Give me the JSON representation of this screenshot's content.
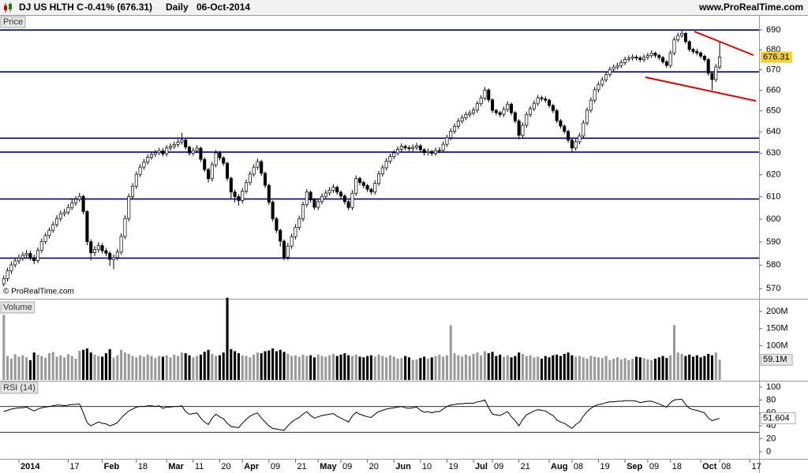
{
  "header": {
    "instrument": "DJ US HLTH C",
    "change": "-0.41% (676.31)",
    "period": "Daily",
    "date": "06-Oct-2014",
    "site": "www.ProRealTime.com",
    "watermark": "© ProRealTime.com"
  },
  "chart_data": [
    {
      "type": "candlestick",
      "panel_label": "Price",
      "log_scale": true,
      "ylim": [
        566.4,
        697.3
      ],
      "yticks": [
        570,
        580,
        590,
        600,
        610,
        620,
        630,
        640,
        650,
        660,
        670,
        680,
        690
      ],
      "xlim": [
        -1,
        199.4
      ],
      "xticks": [
        {
          "value": 4,
          "label": "2014"
        },
        {
          "value": 17,
          "label": "17"
        },
        {
          "value": 26,
          "label": "Feb"
        },
        {
          "value": 35,
          "label": "18"
        },
        {
          "value": 43,
          "label": "Mar"
        },
        {
          "value": 50,
          "label": "11"
        },
        {
          "value": 57,
          "label": "20"
        },
        {
          "value": 63,
          "label": "Apr"
        },
        {
          "value": 70,
          "label": "09"
        },
        {
          "value": 77,
          "label": "21"
        },
        {
          "value": 83,
          "label": "May"
        },
        {
          "value": 89,
          "label": "09"
        },
        {
          "value": 96,
          "label": "20"
        },
        {
          "value": 103,
          "label": "Jun"
        },
        {
          "value": 110,
          "label": "10"
        },
        {
          "value": 117,
          "label": "19"
        },
        {
          "value": 124,
          "label": "Jul"
        },
        {
          "value": 129,
          "label": "09"
        },
        {
          "value": 136,
          "label": "21"
        },
        {
          "value": 144,
          "label": "Aug"
        },
        {
          "value": 150,
          "label": "08"
        },
        {
          "value": 157,
          "label": "19"
        },
        {
          "value": 164,
          "label": "Sep"
        },
        {
          "value": 170,
          "label": "09"
        },
        {
          "value": 176,
          "label": "18"
        },
        {
          "value": 184,
          "label": "Oct"
        },
        {
          "value": 189,
          "label": "08"
        },
        {
          "value": 197,
          "label": "17"
        }
      ],
      "levels": [
        690,
        669,
        637,
        630.5,
        609,
        583
      ],
      "level_color": "#000080",
      "up_color": "#ffffff",
      "down_color": "#000000",
      "last_color": "#f5d033",
      "open": [
        572.0,
        574.2,
        577.5,
        580.1,
        581.8,
        583.0,
        584.3,
        585.0,
        583.2,
        581.9,
        586.4,
        590.2,
        592.8,
        595.1,
        597.6,
        600.3,
        602.4,
        603.1,
        605.2,
        607.3,
        608.9,
        610.2,
        603.4,
        590.1,
        585.3,
        586.7,
        588.4,
        586.2,
        585.1,
        582.4,
        583.2,
        585.6,
        592.4,
        600.3,
        610.1,
        614.8,
        620.2,
        623.5,
        625.9,
        628.1,
        629.4,
        630.2,
        631.1,
        629.7,
        632.4,
        633.1,
        634.0,
        635.2,
        636.1,
        632.8,
        630.0,
        631.2,
        632.3,
        627.1,
        622.4,
        618.2,
        624.6,
        630.1,
        627.8,
        625.3,
        618.4,
        612.2,
        610.1,
        608.3,
        612.6,
        616.4,
        620.3,
        623.5,
        626.1,
        620.7,
        615.2,
        607.6,
        600.2,
        595.1,
        590.3,
        583.4,
        588.2,
        592.3,
        596.4,
        600.2,
        606.5,
        612.1,
        608.6,
        605.3,
        607.8,
        610.2,
        611.7,
        613.0,
        614.3,
        612.1,
        610.4,
        607.8,
        605.2,
        611.6,
        618.3,
        616.5,
        615.1,
        613.4,
        612.2,
        616.1,
        620.4,
        623.2,
        626.3,
        628.4,
        630.1,
        631.8,
        633.2,
        632.5,
        632.1,
        632.7,
        633.4,
        631.6,
        630.2,
        630.8,
        629.9,
        631.2,
        631.4,
        634.1,
        637.2,
        640.3,
        642.6,
        645.1,
        646.7,
        648.2,
        649.0,
        650.3,
        653.4,
        656.2,
        660.1,
        655.3,
        650.2,
        649.1,
        648.3,
        650.7,
        653.2,
        649.1,
        645.2,
        638.4,
        643.1,
        648.2,
        651.0,
        653.6,
        656.3,
        655.8,
        655.1,
        652.6,
        650.1,
        645.3,
        642.7,
        640.2,
        636.1,
        632.4,
        635.3,
        638.1,
        644.2,
        650.3,
        655.1,
        660.2,
        662.8,
        665.1,
        667.6,
        670.2,
        671.3,
        672.1,
        673.6,
        675.2,
        675.8,
        676.4,
        675.9,
        675.1,
        676.2,
        677.1,
        678.3,
        677.2,
        676.1,
        674.0,
        672.2,
        678.4,
        685.1,
        687.2,
        688.3,
        684.1,
        680.2,
        679.1,
        678.4,
        676.8,
        675.1,
        668.3,
        665.2,
        671.4
      ],
      "high": [
        575.6,
        578.9,
        581.5,
        583.2,
        584.6,
        585.7,
        586.5,
        586.2,
        584.5,
        587.6,
        591.5,
        594.0,
        596.4,
        599.0,
        601.8,
        603.9,
        604.6,
        606.7,
        608.8,
        610.4,
        611.8,
        611.0,
        604.0,
        591.2,
        588.2,
        589.9,
        589.5,
        587.4,
        586.0,
        584.6,
        587.0,
        593.8,
        601.7,
        611.5,
        616.2,
        621.6,
        624.9,
        627.3,
        629.5,
        630.8,
        631.6,
        632.5,
        632.4,
        633.8,
        634.5,
        635.4,
        636.6,
        639.5,
        637.0,
        633.6,
        632.6,
        633.7,
        633.0,
        628.0,
        623.2,
        626.0,
        631.5,
        631.0,
        628.6,
        626.0,
        619.2,
        613.4,
        611.2,
        614.0,
        617.8,
        621.7,
        624.9,
        627.5,
        626.9,
        621.5,
        616.0,
        608.4,
        601.0,
        595.9,
        591.1,
        589.6,
        593.7,
        597.8,
        601.6,
        607.9,
        613.5,
        612.9,
        609.4,
        609.2,
        611.6,
        613.1,
        614.4,
        615.7,
        615.1,
        612.9,
        611.2,
        608.6,
        613.0,
        619.7,
        619.1,
        617.3,
        615.9,
        614.2,
        617.5,
        621.8,
        624.6,
        627.7,
        629.8,
        631.5,
        633.2,
        634.6,
        634.0,
        633.6,
        634.1,
        634.8,
        634.2,
        632.4,
        632.2,
        631.6,
        632.6,
        632.8,
        635.5,
        638.6,
        641.7,
        644.0,
        646.5,
        648.1,
        649.6,
        650.4,
        651.7,
        654.8,
        657.6,
        661.5,
        660.9,
        656.1,
        651.0,
        649.9,
        652.1,
        654.6,
        654.0,
        649.9,
        646.0,
        644.5,
        649.6,
        652.4,
        655.0,
        657.7,
        657.3,
        657.0,
        655.9,
        653.4,
        650.9,
        646.1,
        643.5,
        641.0,
        636.9,
        636.7,
        639.5,
        645.6,
        651.7,
        656.5,
        661.6,
        664.2,
        666.5,
        669.0,
        671.6,
        672.7,
        673.5,
        675.0,
        676.6,
        677.2,
        677.8,
        677.4,
        676.9,
        677.6,
        678.5,
        679.7,
        679.1,
        678.0,
        676.9,
        674.8,
        679.8,
        686.5,
        688.6,
        689.7,
        689.1,
        684.9,
        681.0,
        680.5,
        679.2,
        677.6,
        675.9,
        669.1,
        672.8,
        684.0
      ],
      "low": [
        570.9,
        573.0,
        576.2,
        579.0,
        580.5,
        581.9,
        583.0,
        582.0,
        580.4,
        580.8,
        585.2,
        589.1,
        591.5,
        594.0,
        596.5,
        599.0,
        601.2,
        602.0,
        604.1,
        606.0,
        607.7,
        602.1,
        588.6,
        582.0,
        583.9,
        585.4,
        585.0,
        583.8,
        579.6,
        578.2,
        582.0,
        584.4,
        591.2,
        599.0,
        608.9,
        613.6,
        619.0,
        622.3,
        624.7,
        626.9,
        628.2,
        629.0,
        628.5,
        628.5,
        631.2,
        631.9,
        632.8,
        634.0,
        631.6,
        628.8,
        628.8,
        630.0,
        625.9,
        621.2,
        616.5,
        617.0,
        623.4,
        626.6,
        624.1,
        617.2,
        609.0,
        607.5,
        606.0,
        607.1,
        611.4,
        615.2,
        619.1,
        622.3,
        619.5,
        614.0,
        606.4,
        599.0,
        593.9,
        588.0,
        582.0,
        582.2,
        587.0,
        591.1,
        595.2,
        599.0,
        605.3,
        607.4,
        604.1,
        604.1,
        606.6,
        609.0,
        610.5,
        611.8,
        610.9,
        609.2,
        606.6,
        604.0,
        604.0,
        610.4,
        615.3,
        613.9,
        612.2,
        611.0,
        611.0,
        614.9,
        619.2,
        622.0,
        625.1,
        627.2,
        628.9,
        630.6,
        631.3,
        630.9,
        630.9,
        631.5,
        630.4,
        629.0,
        629.0,
        628.7,
        628.7,
        630.0,
        630.2,
        632.9,
        636.0,
        639.1,
        641.4,
        643.9,
        645.5,
        647.0,
        647.8,
        649.1,
        652.2,
        655.0,
        654.1,
        649.0,
        647.9,
        647.1,
        647.1,
        649.5,
        647.9,
        644.0,
        636.5,
        637.2,
        641.9,
        647.0,
        649.8,
        652.4,
        654.6,
        653.9,
        651.4,
        648.9,
        644.1,
        641.5,
        639.0,
        634.9,
        630.5,
        631.2,
        634.1,
        636.9,
        643.0,
        649.1,
        653.9,
        659.0,
        661.6,
        663.9,
        666.4,
        669.0,
        670.1,
        670.9,
        672.4,
        674.0,
        674.6,
        674.7,
        673.9,
        673.9,
        675.0,
        675.9,
        676.0,
        674.9,
        672.8,
        671.0,
        671.0,
        677.2,
        683.9,
        686.0,
        682.9,
        679.0,
        677.9,
        677.2,
        675.6,
        673.9,
        667.1,
        660.0,
        664.0,
        670.2
      ],
      "close": [
        574.2,
        577.5,
        580.1,
        581.8,
        583.0,
        584.3,
        585.0,
        583.2,
        581.9,
        586.4,
        590.2,
        592.8,
        595.1,
        597.6,
        600.3,
        602.4,
        603.1,
        605.2,
        607.3,
        608.9,
        610.2,
        603.4,
        590.1,
        585.3,
        586.7,
        588.4,
        586.2,
        585.1,
        582.4,
        583.2,
        585.6,
        592.4,
        600.3,
        610.1,
        614.8,
        620.2,
        623.5,
        625.9,
        628.1,
        629.4,
        630.2,
        631.1,
        629.7,
        632.4,
        633.1,
        634.0,
        635.2,
        636.1,
        632.8,
        630.0,
        631.2,
        632.3,
        627.1,
        622.4,
        618.2,
        624.6,
        630.1,
        627.8,
        625.3,
        618.4,
        612.2,
        610.1,
        608.3,
        612.6,
        616.4,
        620.3,
        623.5,
        626.1,
        620.7,
        615.2,
        607.6,
        600.2,
        595.1,
        590.3,
        583.4,
        588.2,
        592.3,
        596.4,
        600.2,
        606.5,
        612.1,
        608.6,
        605.3,
        607.8,
        610.2,
        611.7,
        613.0,
        614.3,
        612.1,
        610.4,
        607.8,
        605.2,
        611.6,
        618.3,
        616.5,
        615.1,
        613.4,
        612.2,
        616.1,
        620.4,
        623.2,
        626.3,
        628.4,
        630.1,
        631.8,
        633.2,
        632.5,
        632.1,
        632.7,
        633.4,
        631.6,
        630.2,
        630.8,
        629.9,
        631.2,
        631.4,
        634.1,
        637.2,
        640.3,
        642.6,
        645.1,
        646.7,
        648.2,
        649.0,
        650.3,
        653.4,
        656.2,
        660.1,
        655.3,
        650.2,
        649.1,
        648.3,
        650.7,
        653.2,
        649.1,
        645.2,
        638.4,
        643.1,
        648.2,
        651.0,
        653.6,
        656.3,
        655.8,
        655.1,
        652.6,
        650.1,
        645.3,
        642.7,
        640.2,
        636.1,
        632.4,
        635.3,
        638.1,
        644.2,
        650.3,
        655.1,
        660.2,
        662.8,
        665.1,
        667.6,
        670.2,
        671.3,
        672.1,
        673.6,
        675.2,
        675.8,
        676.4,
        675.9,
        675.1,
        676.2,
        677.1,
        678.3,
        677.2,
        676.1,
        674.0,
        672.2,
        678.4,
        685.1,
        687.2,
        688.3,
        684.1,
        680.2,
        679.1,
        678.4,
        676.8,
        675.1,
        668.3,
        665.2,
        671.4,
        676.31
      ]
    },
    {
      "type": "bar",
      "panel_label": "Volume",
      "ylim": [
        0,
        230
      ],
      "yticks": [
        {
          "value": 200,
          "label": "200M"
        },
        {
          "value": 150,
          "label": "150M"
        },
        {
          "value": 100,
          "label": "100M"
        }
      ],
      "up_color": "#999999",
      "down_color": "#000000",
      "last_label": "59.1M",
      "values": [
        190,
        70,
        62,
        75,
        68,
        72,
        66,
        58,
        80,
        74,
        70,
        65,
        78,
        82,
        68,
        72,
        66,
        75,
        70,
        62,
        85,
        88,
        92,
        80,
        74,
        70,
        68,
        78,
        90,
        65,
        72,
        88,
        80,
        76,
        70,
        66,
        72,
        68,
        74,
        70,
        64,
        70,
        68,
        72,
        66,
        74,
        70,
        80,
        78,
        72,
        66,
        70,
        74,
        82,
        88,
        76,
        70,
        72,
        80,
        240,
        90,
        84,
        78,
        72,
        70,
        66,
        74,
        80,
        78,
        84,
        86,
        92,
        84,
        88,
        82,
        76,
        70,
        72,
        68,
        74,
        70,
        72,
        66,
        74,
        70,
        68,
        72,
        76,
        70,
        74,
        78,
        72,
        70,
        74,
        68,
        66,
        70,
        72,
        68,
        74,
        70,
        66,
        72,
        68,
        62,
        64,
        70,
        66,
        58,
        60,
        64,
        68,
        62,
        66,
        70,
        74,
        68,
        72,
        160,
        78,
        72,
        68,
        74,
        70,
        76,
        80,
        72,
        84,
        78,
        82,
        70,
        74,
        68,
        72,
        66,
        70,
        80,
        76,
        70,
        72,
        66,
        68,
        62,
        70,
        66,
        72,
        74,
        70,
        76,
        80,
        72,
        68,
        70,
        66,
        62,
        70,
        68,
        66,
        64,
        70,
        58,
        62,
        66,
        60,
        64,
        58,
        62,
        68,
        66,
        64,
        60,
        58,
        62,
        66,
        70,
        64,
        72,
        160,
        80,
        76,
        70,
        74,
        68,
        72,
        66,
        70,
        76,
        72,
        80,
        59.1
      ]
    },
    {
      "type": "line",
      "panel_label": "RSI (14)",
      "ylim": [
        -11,
        108.5
      ],
      "yticks": [
        100,
        80,
        60,
        40,
        20,
        0
      ],
      "levels": [
        70,
        30
      ],
      "level_color": "#333333",
      "color": "#000000",
      "values": [
        62,
        64,
        66,
        67,
        68,
        68,
        69,
        66,
        63,
        66,
        68,
        69,
        70,
        71,
        72,
        72,
        71,
        72,
        73,
        73,
        74,
        60,
        45,
        40,
        43,
        46,
        44,
        43,
        40,
        42,
        45,
        52,
        58,
        63,
        66,
        69,
        70,
        70,
        71,
        71,
        70,
        71,
        67,
        69,
        69,
        70,
        70,
        71,
        62,
        58,
        59,
        60,
        52,
        46,
        42,
        52,
        58,
        54,
        51,
        44,
        39,
        38,
        37,
        44,
        50,
        55,
        58,
        60,
        52,
        46,
        40,
        36,
        35,
        34,
        33,
        40,
        46,
        50,
        53,
        58,
        62,
        56,
        52,
        54,
        56,
        57,
        58,
        59,
        55,
        52,
        49,
        46,
        55,
        61,
        58,
        56,
        54,
        53,
        58,
        62,
        64,
        66,
        67,
        68,
        69,
        70,
        68,
        67,
        68,
        69,
        64,
        61,
        62,
        60,
        62,
        62,
        66,
        70,
        72,
        73,
        74,
        74,
        75,
        75,
        75,
        77,
        78,
        80,
        68,
        58,
        57,
        56,
        59,
        62,
        54,
        48,
        40,
        50,
        57,
        60,
        63,
        65,
        64,
        63,
        59,
        56,
        49,
        46,
        44,
        40,
        36,
        42,
        46,
        55,
        62,
        67,
        71,
        73,
        74,
        76,
        77,
        77,
        78,
        78,
        79,
        79,
        79,
        78,
        76,
        77,
        78,
        78,
        76,
        74,
        71,
        69,
        76,
        80,
        81,
        81,
        73,
        67,
        65,
        64,
        62,
        60,
        52,
        48,
        50,
        51.604
      ]
    }
  ]
}
